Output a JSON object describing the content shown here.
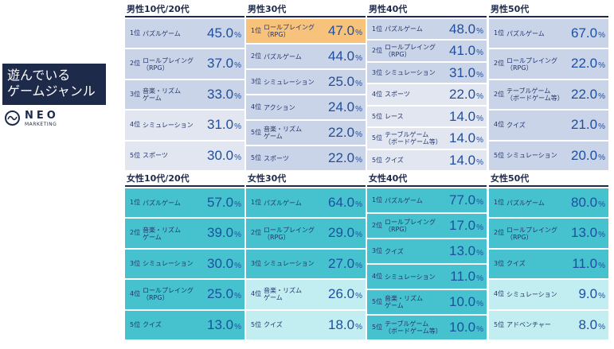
{
  "sidebar": {
    "title_line1": "遊んでいる",
    "title_line2": "ゲームジャンル",
    "logo_word": "NEO",
    "logo_sub": "MARKETING"
  },
  "colors": {
    "male_top": "#c9d4e8",
    "male_low": "#e1e6f0",
    "male_highlight": "#f7c27b",
    "female_top": "#46c2cf",
    "female_low": "#c2edf1",
    "value_text": "#1f4fa0",
    "title_dark": "#1e2a4a"
  },
  "chart_data": [
    {
      "type": "table",
      "title": "男性10代/20代",
      "group": "male",
      "palette": "fade",
      "rows": [
        {
          "rank": "1位",
          "genre": "パズルゲーム",
          "value": 45.0,
          "unit": "%"
        },
        {
          "rank": "2位",
          "genre": "ロールプレイング\n（RPG）",
          "value": 37.0,
          "unit": "%"
        },
        {
          "rank": "3位",
          "genre": "音楽・リズム\nゲーム",
          "value": 33.0,
          "unit": "%"
        },
        {
          "rank": "4位",
          "genre": "シミュレーション",
          "value": 31.0,
          "unit": "%"
        },
        {
          "rank": "5位",
          "genre": "スポーツ",
          "value": 30.0,
          "unit": "%"
        }
      ]
    },
    {
      "type": "table",
      "title": "男性30代",
      "group": "male",
      "palette": "dark",
      "highlight_first": true,
      "rows": [
        {
          "rank": "1位",
          "genre": "ロールプレイング\n（RPG）",
          "value": 47.0,
          "unit": "%"
        },
        {
          "rank": "2位",
          "genre": "パズルゲーム",
          "value": 44.0,
          "unit": "%"
        },
        {
          "rank": "3位",
          "genre": "シミュレーション",
          "value": 25.0,
          "unit": "%"
        },
        {
          "rank": "4位",
          "genre": "アクション",
          "value": 24.0,
          "unit": "%"
        },
        {
          "rank": "5位",
          "genre": "音楽・リズム\nゲーム",
          "value": 22.0,
          "unit": "%"
        },
        {
          "rank": "5位",
          "genre": "スポーツ",
          "value": 22.0,
          "unit": "%"
        }
      ]
    },
    {
      "type": "table",
      "title": "男性40代",
      "group": "male",
      "palette": "fade",
      "rows": [
        {
          "rank": "1位",
          "genre": "パズルゲーム",
          "value": 48.0,
          "unit": "%"
        },
        {
          "rank": "2位",
          "genre": "ロールプレイング\n（RPG）",
          "value": 41.0,
          "unit": "%"
        },
        {
          "rank": "3位",
          "genre": "シミュレーション",
          "value": 31.0,
          "unit": "%"
        },
        {
          "rank": "4位",
          "genre": "スポーツ",
          "value": 22.0,
          "unit": "%"
        },
        {
          "rank": "5位",
          "genre": "レース",
          "value": 14.0,
          "unit": "%"
        },
        {
          "rank": "5位",
          "genre": "テーブルゲーム\n（ボードゲーム等）",
          "value": 14.0,
          "unit": "%"
        },
        {
          "rank": "5位",
          "genre": "クイズ",
          "value": 14.0,
          "unit": "%"
        }
      ]
    },
    {
      "type": "table",
      "title": "男性50代",
      "group": "male",
      "palette": "dark",
      "rows": [
        {
          "rank": "1位",
          "genre": "パズルゲーム",
          "value": 67.0,
          "unit": "%"
        },
        {
          "rank": "2位",
          "genre": "ロールプレイング\n（RPG）",
          "value": 22.0,
          "unit": "%"
        },
        {
          "rank": "2位",
          "genre": "テーブルゲーム\n（ボードゲーム等）",
          "value": 22.0,
          "unit": "%"
        },
        {
          "rank": "4位",
          "genre": "クイズ",
          "value": 21.0,
          "unit": "%"
        },
        {
          "rank": "5位",
          "genre": "シミュレーション",
          "value": 20.0,
          "unit": "%"
        }
      ]
    },
    {
      "type": "table",
      "title": "女性10代/20代",
      "group": "female",
      "palette": "dark",
      "rows": [
        {
          "rank": "1位",
          "genre": "パズルゲーム",
          "value": 57.0,
          "unit": "%"
        },
        {
          "rank": "2位",
          "genre": "音楽・リズム\nゲーム",
          "value": 39.0,
          "unit": "%"
        },
        {
          "rank": "3位",
          "genre": "シミュレーション",
          "value": 30.0,
          "unit": "%"
        },
        {
          "rank": "4位",
          "genre": "ロールプレイング\n（RPG）",
          "value": 25.0,
          "unit": "%"
        },
        {
          "rank": "5位",
          "genre": "クイズ",
          "value": 13.0,
          "unit": "%"
        }
      ]
    },
    {
      "type": "table",
      "title": "女性30代",
      "group": "female",
      "palette": "fade",
      "rows": [
        {
          "rank": "1位",
          "genre": "パズルゲーム",
          "value": 64.0,
          "unit": "%"
        },
        {
          "rank": "2位",
          "genre": "ロールプレイング\n（RPG）",
          "value": 29.0,
          "unit": "%"
        },
        {
          "rank": "3位",
          "genre": "シミュレーション",
          "value": 27.0,
          "unit": "%"
        },
        {
          "rank": "4位",
          "genre": "音楽・リズム\nゲーム",
          "value": 26.0,
          "unit": "%"
        },
        {
          "rank": "5位",
          "genre": "クイズ",
          "value": 18.0,
          "unit": "%"
        }
      ]
    },
    {
      "type": "table",
      "title": "女性40代",
      "group": "female",
      "palette": "dark",
      "rows": [
        {
          "rank": "1位",
          "genre": "パズルゲーム",
          "value": 77.0,
          "unit": "%"
        },
        {
          "rank": "2位",
          "genre": "ロールプレイング\n（RPG）",
          "value": 17.0,
          "unit": "%"
        },
        {
          "rank": "3位",
          "genre": "クイズ",
          "value": 13.0,
          "unit": "%"
        },
        {
          "rank": "4位",
          "genre": "シミュレーション",
          "value": 11.0,
          "unit": "%"
        },
        {
          "rank": "5位",
          "genre": "音楽・リズム\nゲーム",
          "value": 10.0,
          "unit": "%"
        },
        {
          "rank": "5位",
          "genre": "テーブルゲーム\n（ボードゲーム等）",
          "value": 10.0,
          "unit": "%"
        }
      ]
    },
    {
      "type": "table",
      "title": "女性50代",
      "group": "female",
      "palette": "fade",
      "rows": [
        {
          "rank": "1位",
          "genre": "パズルゲーム",
          "value": 80.0,
          "unit": "%"
        },
        {
          "rank": "2位",
          "genre": "ロールプレイング\n（RPG）",
          "value": 13.0,
          "unit": "%"
        },
        {
          "rank": "3位",
          "genre": "クイズ",
          "value": 11.0,
          "unit": "%"
        },
        {
          "rank": "4位",
          "genre": "シミュレーション",
          "value": 9.0,
          "unit": "%"
        },
        {
          "rank": "5位",
          "genre": "アドベンチャー",
          "value": 8.0,
          "unit": "%"
        }
      ]
    }
  ]
}
